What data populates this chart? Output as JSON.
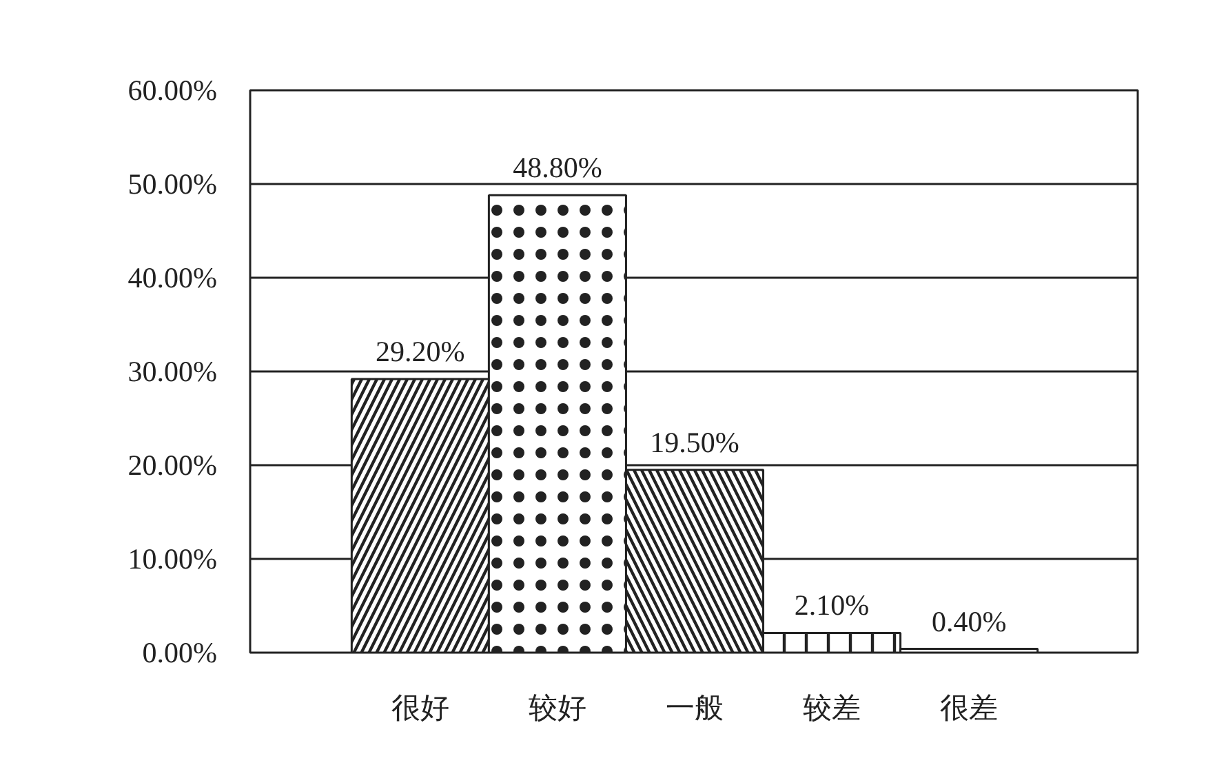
{
  "chart_data": {
    "type": "bar",
    "categories": [
      "很好",
      "较好",
      "一般",
      "较差",
      "很差"
    ],
    "values": [
      29.2,
      48.8,
      19.5,
      2.1,
      0.4
    ],
    "value_labels": [
      "29.20%",
      "48.80%",
      "19.50%",
      "2.10%",
      "0.40%"
    ],
    "color": "#ffffff",
    "ylim": [
      0,
      60
    ],
    "yticks": [
      {
        "value": 0,
        "label": "0.00%"
      },
      {
        "value": 10,
        "label": "10.00%"
      },
      {
        "value": 20,
        "label": "20.00%"
      },
      {
        "value": 30,
        "label": "30.00%"
      },
      {
        "value": 40,
        "label": "40.00%"
      },
      {
        "value": 50,
        "label": "50.00%"
      },
      {
        "value": 60,
        "label": "60.00%"
      }
    ],
    "grid": "y"
  }
}
